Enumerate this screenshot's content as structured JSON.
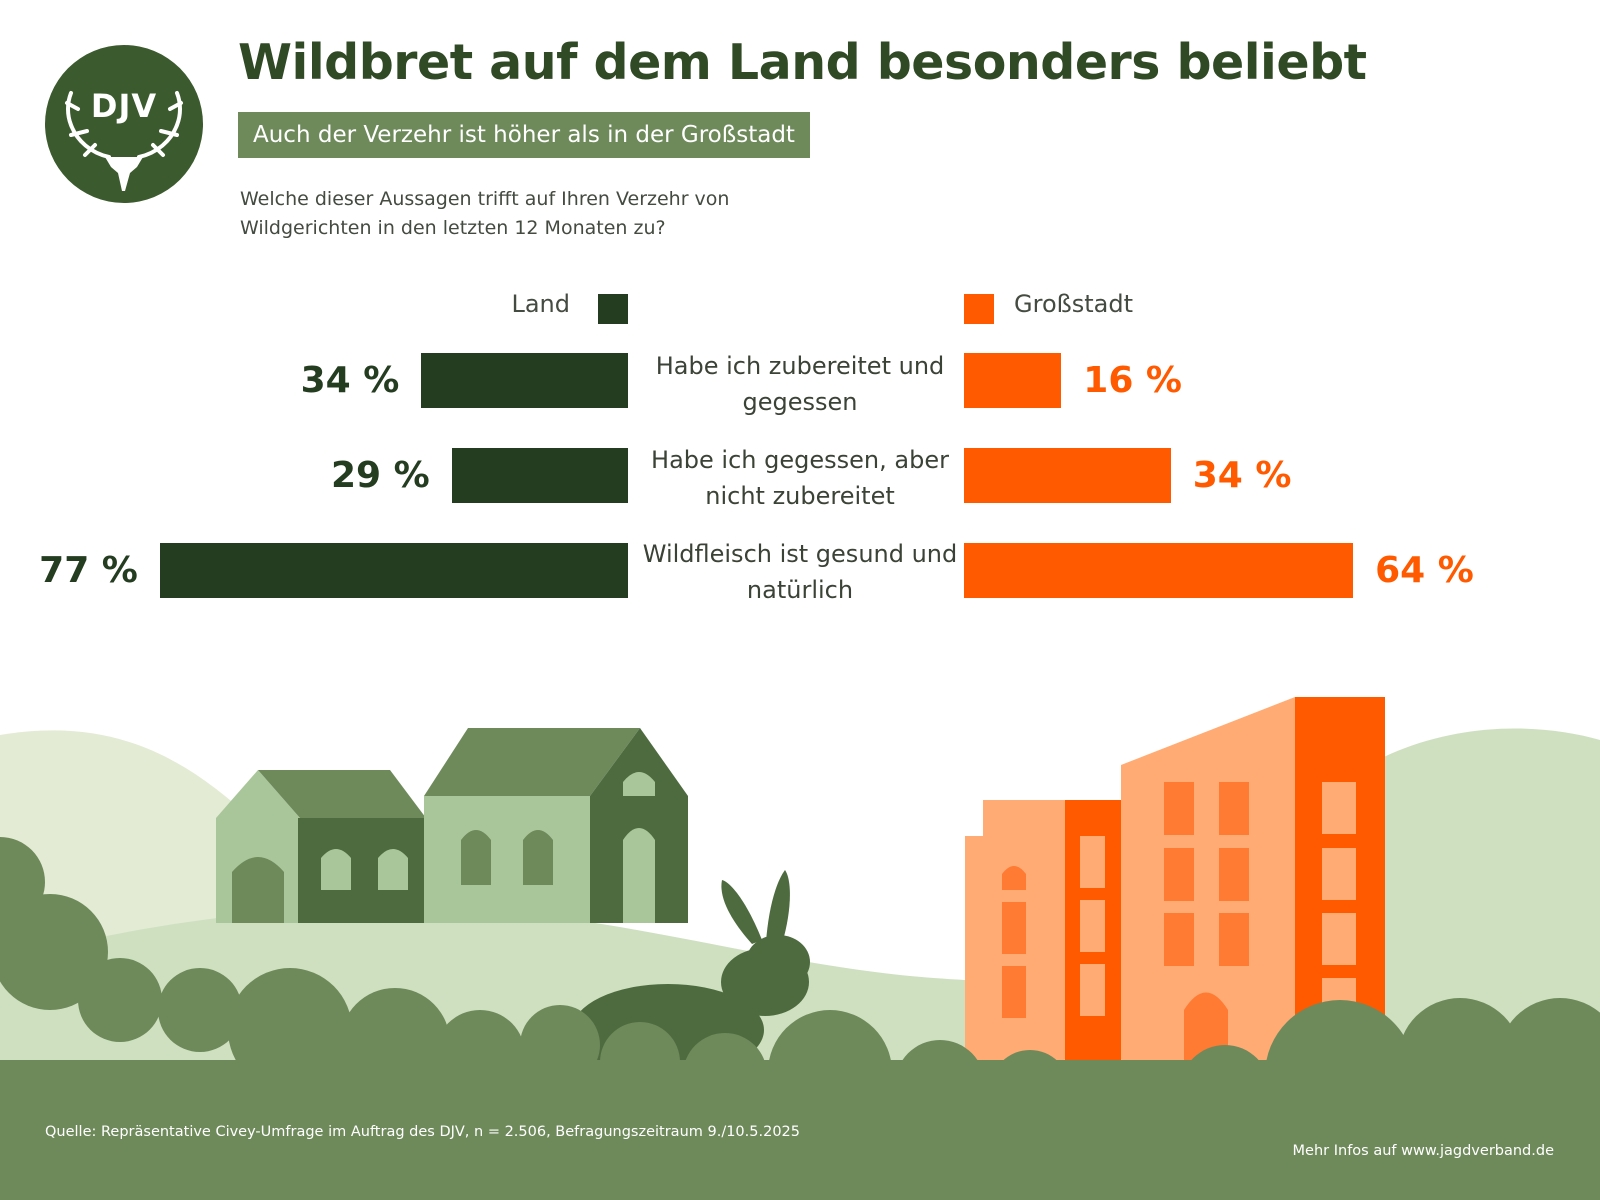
{
  "header": {
    "title": "Wildbret auf dem Land besonders beliebt",
    "subtitle": "Auch der Verzehr ist höher als in der Großstadt",
    "question": "Welche dieser Aussagen trifft auf Ihren Verzehr von Wildgerichten in den letzten 12 Monaten zu?"
  },
  "logo": {
    "text": "DJV",
    "icon": "deer-antlers-icon"
  },
  "colors": {
    "land": "#243d20",
    "city": "#ff5a00",
    "brand": "#3b5a2e",
    "subtitle_bg": "#6e8a5b"
  },
  "chart_data": {
    "type": "bar",
    "orientation": "horizontal-diverging",
    "title": "Wildbret auf dem Land besonders beliebt",
    "subtitle": "Auch der Verzehr ist höher als in der Großstadt",
    "unit": "%",
    "categories": [
      "Habe ich zubereitet und gegessen",
      "Habe ich gegessen, aber nicht zubereitet",
      "Wildfleisch ist gesund und natürlich"
    ],
    "series": [
      {
        "name": "Land",
        "color": "#243d20",
        "values": [
          34,
          29,
          77
        ],
        "labels": [
          "34 %",
          "29 %",
          "77 %"
        ]
      },
      {
        "name": "Großstadt",
        "color": "#ff5a00",
        "values": [
          16,
          34,
          64
        ],
        "labels": [
          "16 %",
          "34 %",
          "64 %"
        ]
      }
    ],
    "xlim": [
      0,
      77
    ]
  },
  "footer": {
    "source": "Quelle: Repräsentative Civey-Umfrage im Auftrag des DJV, n = 2.506, Befragungszeitraum 9./10.5.2025",
    "more_info": "Mehr Infos auf www.jagdverband.de"
  }
}
